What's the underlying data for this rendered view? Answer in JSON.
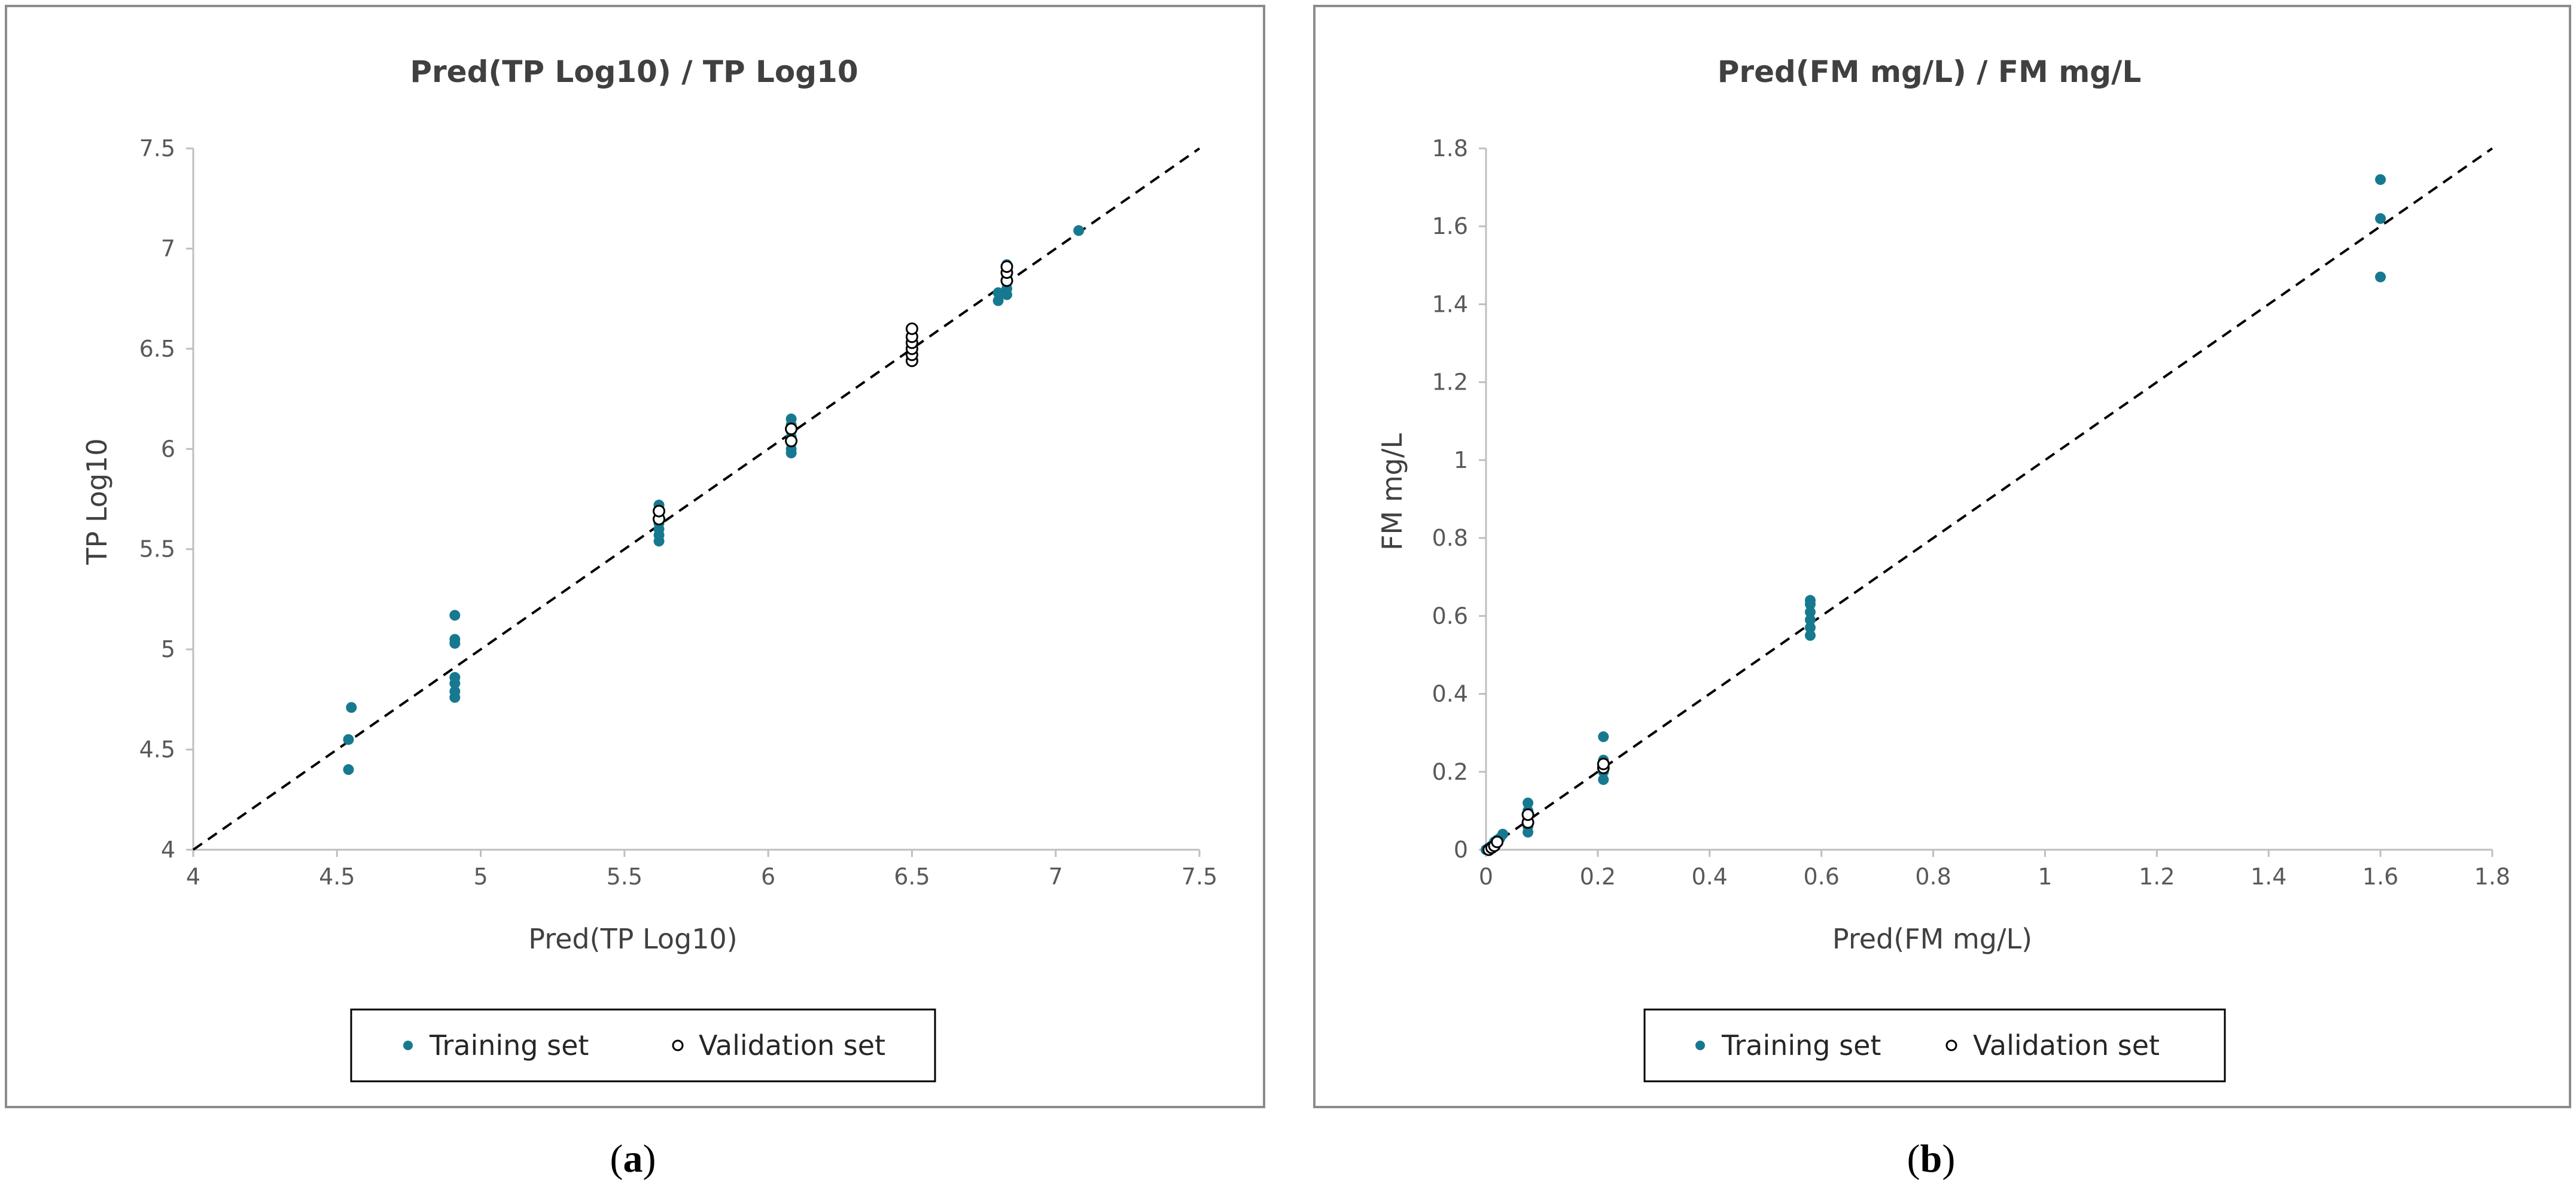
{
  "colors": {
    "training": "#17798F",
    "validation_stroke": "#000000",
    "validation_fill": "#ffffff",
    "frame": "#8c8c8c",
    "axis": "#bfbfbf",
    "diagonal": "#000000"
  },
  "legend": {
    "training": "Training set",
    "validation": "Validation set"
  },
  "chart_data": [
    {
      "type": "scatter",
      "panel": "a",
      "caption": {
        "open": "(",
        "letter": "a",
        "close": ")"
      },
      "title": "Pred(TP Log10) / TP Log10",
      "xlabel": "Pred(TP Log10)",
      "ylabel": "TP Log10",
      "xlim": [
        4,
        7.5
      ],
      "ylim": [
        4,
        7.5
      ],
      "xticks": [
        "4",
        "4.5",
        "5",
        "5.5",
        "6",
        "6.5",
        "7",
        "7.5"
      ],
      "yticks": [
        "4",
        "4.5",
        "5",
        "5.5",
        "6",
        "6.5",
        "7",
        "7.5"
      ],
      "reference_line": "y = x",
      "series": [
        {
          "name": "Training set",
          "points": [
            [
              4.54,
              4.4
            ],
            [
              4.54,
              4.55
            ],
            [
              4.55,
              4.71
            ],
            [
              4.91,
              4.76
            ],
            [
              4.91,
              4.79
            ],
            [
              4.91,
              4.83
            ],
            [
              4.91,
              4.86
            ],
            [
              4.91,
              5.03
            ],
            [
              4.91,
              5.05
            ],
            [
              4.91,
              5.17
            ],
            [
              5.62,
              5.54
            ],
            [
              5.62,
              5.57
            ],
            [
              5.62,
              5.6
            ],
            [
              5.62,
              5.63
            ],
            [
              5.62,
              5.68
            ],
            [
              5.62,
              5.72
            ],
            [
              6.08,
              5.98
            ],
            [
              6.08,
              6.0
            ],
            [
              6.08,
              6.03
            ],
            [
              6.08,
              6.06
            ],
            [
              6.08,
              6.09
            ],
            [
              6.08,
              6.12
            ],
            [
              6.08,
              6.15
            ],
            [
              6.5,
              6.45
            ],
            [
              6.5,
              6.48
            ],
            [
              6.5,
              6.51
            ],
            [
              6.5,
              6.54
            ],
            [
              6.5,
              6.57
            ],
            [
              6.8,
              6.74
            ],
            [
              6.8,
              6.78
            ],
            [
              6.83,
              6.77
            ],
            [
              6.83,
              6.8
            ],
            [
              6.83,
              6.83
            ],
            [
              6.83,
              6.86
            ],
            [
              6.83,
              6.89
            ],
            [
              6.83,
              6.92
            ],
            [
              7.08,
              7.09
            ]
          ]
        },
        {
          "name": "Validation set",
          "points": [
            [
              5.62,
              5.65
            ],
            [
              5.62,
              5.69
            ],
            [
              6.08,
              6.04
            ],
            [
              6.08,
              6.1
            ],
            [
              6.5,
              6.44
            ],
            [
              6.5,
              6.47
            ],
            [
              6.5,
              6.5
            ],
            [
              6.5,
              6.53
            ],
            [
              6.5,
              6.56
            ],
            [
              6.5,
              6.6
            ],
            [
              6.83,
              6.84
            ],
            [
              6.83,
              6.88
            ],
            [
              6.83,
              6.91
            ]
          ]
        }
      ]
    },
    {
      "type": "scatter",
      "panel": "b",
      "caption": {
        "open": "(",
        "letter": "b",
        "close": ")"
      },
      "title": "Pred(FM mg/L) / FM mg/L",
      "xlabel": "Pred(FM mg/L)",
      "ylabel": "FM mg/L",
      "xlim": [
        0,
        1.8
      ],
      "ylim": [
        0,
        1.8
      ],
      "xticks": [
        "0",
        "0.2",
        "0.4",
        "0.6",
        "0.8",
        "1",
        "1.2",
        "1.4",
        "1.6",
        "1.8"
      ],
      "yticks": [
        "0",
        "0.2",
        "0.4",
        "0.6",
        "0.8",
        "1",
        "1.2",
        "1.4",
        "1.6",
        "1.8"
      ],
      "reference_line": "y = x",
      "series": [
        {
          "name": "Training set",
          "points": [
            [
              0.0,
              0.0
            ],
            [
              0.005,
              0.005
            ],
            [
              0.01,
              0.01
            ],
            [
              0.015,
              0.02
            ],
            [
              0.02,
              0.025
            ],
            [
              0.03,
              0.04
            ],
            [
              0.025,
              0.03
            ],
            [
              0.075,
              0.045
            ],
            [
              0.075,
              0.06
            ],
            [
              0.075,
              0.08
            ],
            [
              0.075,
              0.1
            ],
            [
              0.075,
              0.12
            ],
            [
              0.21,
              0.18
            ],
            [
              0.21,
              0.2
            ],
            [
              0.21,
              0.23
            ],
            [
              0.21,
              0.29
            ],
            [
              0.58,
              0.55
            ],
            [
              0.58,
              0.57
            ],
            [
              0.58,
              0.59
            ],
            [
              0.58,
              0.61
            ],
            [
              0.58,
              0.63
            ],
            [
              0.58,
              0.64
            ],
            [
              1.6,
              1.47
            ],
            [
              1.6,
              1.62
            ],
            [
              1.6,
              1.72
            ]
          ]
        },
        {
          "name": "Validation set",
          "points": [
            [
              0.005,
              0.0
            ],
            [
              0.01,
              0.005
            ],
            [
              0.015,
              0.01
            ],
            [
              0.02,
              0.02
            ],
            [
              0.075,
              0.07
            ],
            [
              0.075,
              0.09
            ],
            [
              0.21,
              0.21
            ],
            [
              0.21,
              0.22
            ]
          ]
        }
      ]
    }
  ]
}
